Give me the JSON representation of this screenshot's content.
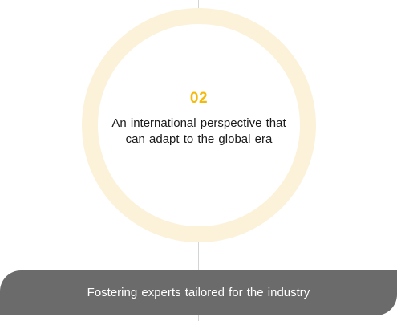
{
  "circle": {
    "number": "02",
    "text": "An international perspective that can adapt to the global era"
  },
  "banner": {
    "text": "Fostering experts tailored for the industry"
  },
  "colors": {
    "accent": "#f5b90a",
    "ring": "#fbf2d9",
    "banner_bg": "#6b6b6b",
    "divider": "#d4d4d4"
  }
}
